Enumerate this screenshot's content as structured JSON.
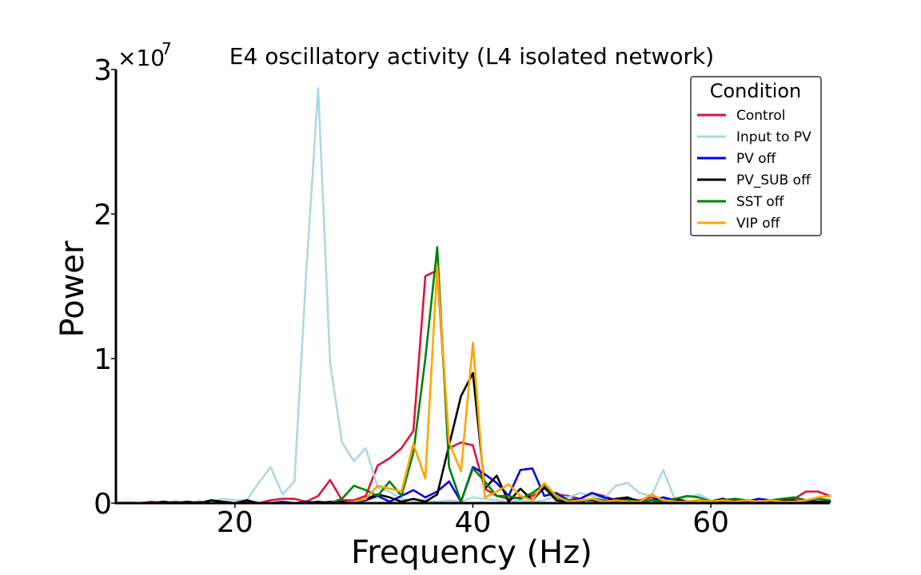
{
  "chart_data": {
    "type": "line",
    "title": "E4 oscillatory activity (L4 isolated network)",
    "xlabel": "Frequency (Hz)",
    "ylabel": "Power",
    "y_multiplier": "×10",
    "y_exponent": "7",
    "xlim": [
      10,
      70
    ],
    "ylim": [
      0,
      3
    ],
    "x_ticks": [
      20,
      40,
      60
    ],
    "y_ticks": [
      0,
      1,
      2,
      3
    ],
    "grid": false,
    "legend": {
      "title": "Condition",
      "position": "top-right"
    },
    "x": [
      10,
      11,
      12,
      13,
      14,
      15,
      16,
      17,
      18,
      19,
      20,
      21,
      22,
      23,
      24,
      25,
      26,
      27,
      28,
      29,
      30,
      31,
      32,
      33,
      34,
      35,
      36,
      37,
      38,
      39,
      40,
      41,
      42,
      43,
      44,
      45,
      46,
      47,
      48,
      49,
      50,
      51,
      52,
      53,
      54,
      55,
      56,
      57,
      58,
      59,
      60,
      61,
      62,
      63,
      64,
      65,
      66,
      67,
      68,
      69,
      70
    ],
    "series": [
      {
        "name": "Control",
        "color": "#dc143c",
        "values": [
          0,
          0,
          0,
          0.01,
          0,
          0.01,
          0,
          0.01,
          0,
          0.01,
          0,
          0.01,
          0,
          0.02,
          0.03,
          0.03,
          0.01,
          0.05,
          0.16,
          0.02,
          0.02,
          0.05,
          0.26,
          0.31,
          0.38,
          0.5,
          1.57,
          1.61,
          0.38,
          0.42,
          0.4,
          0.1,
          0.05,
          0.03,
          0.04,
          0.05,
          0.1,
          0.06,
          0.05,
          0.03,
          0.07,
          0.05,
          0.02,
          0.03,
          0.02,
          0.04,
          0.02,
          0.03,
          0.01,
          0.02,
          0.01,
          0.03,
          0.01,
          0.02,
          0.01,
          0.02,
          0.02,
          0.03,
          0.08,
          0.08,
          0.05
        ]
      },
      {
        "name": "Input to PV",
        "color": "#add8e6",
        "values": [
          0,
          0.01,
          0,
          0,
          0.01,
          0,
          0.01,
          0,
          0.01,
          0.03,
          0.02,
          0.02,
          0.14,
          0.25,
          0.06,
          0.15,
          1.6,
          2.87,
          0.97,
          0.42,
          0.29,
          0.38,
          0.11,
          0.08,
          0.03,
          0.02,
          0.02,
          0.01,
          0.02,
          0.01,
          0.04,
          0.03,
          0.02,
          0.01,
          0.02,
          0.01,
          0.02,
          0.05,
          0.04,
          0.07,
          0.05,
          0.03,
          0.12,
          0.14,
          0.07,
          0.05,
          0.23,
          0.02,
          0.04,
          0.06,
          0.02,
          0.01,
          0.02,
          0.01,
          0.01,
          0.02,
          0.01,
          0.01,
          0.02,
          0.01,
          0.01
        ]
      },
      {
        "name": "PV off",
        "color": "#0000e0",
        "values": [
          0,
          0,
          0,
          0,
          0,
          0,
          0,
          0,
          0,
          0,
          0,
          0,
          0,
          0,
          0.01,
          0,
          0.01,
          0,
          0.01,
          0,
          0.01,
          0.02,
          0.05,
          0.01,
          0.05,
          0.09,
          0.04,
          0.08,
          0.15,
          0.01,
          0.25,
          0.2,
          0.14,
          0.05,
          0.23,
          0.24,
          0.05,
          0.07,
          0.02,
          0.03,
          0.07,
          0.04,
          0.02,
          0.03,
          0.01,
          0.02,
          0.04,
          0.02,
          0.01,
          0.02,
          0.01,
          0.01,
          0.02,
          0.01,
          0.03,
          0.02,
          0.01,
          0.02,
          0.01,
          0.01,
          0.01
        ]
      },
      {
        "name": "PV_SUB off",
        "color": "#000000",
        "values": [
          0,
          0,
          0,
          0,
          0.01,
          0,
          0.01,
          0,
          0.02,
          0.01,
          0,
          0.02,
          0,
          0,
          0,
          0,
          0,
          0.01,
          0,
          0.01,
          0,
          0.03,
          0.06,
          0.04,
          0.01,
          0.03,
          0.01,
          0.06,
          0.4,
          0.74,
          0.9,
          0.1,
          0.19,
          0.01,
          0.1,
          0.02,
          0.11,
          0.02,
          0.01,
          0.02,
          0.02,
          0.01,
          0.03,
          0.04,
          0.01,
          0.02,
          0.01,
          0.03,
          0.01,
          0.02,
          0.01,
          0.03,
          0.01,
          0.02,
          0.01,
          0.01,
          0.02,
          0.01,
          0.02,
          0.01,
          0.01
        ]
      },
      {
        "name": "SST off",
        "color": "#008000",
        "values": [
          0,
          0,
          0,
          0,
          0,
          0,
          0,
          0,
          0,
          0,
          0,
          0,
          0,
          0,
          0,
          0,
          0,
          0,
          0,
          0.03,
          0.12,
          0.09,
          0.05,
          0.15,
          0.05,
          0.35,
          1.0,
          1.77,
          0.25,
          0.01,
          0.24,
          0.15,
          0.05,
          0.05,
          0.03,
          0.07,
          0.13,
          0.04,
          0.02,
          0.01,
          0.03,
          0.02,
          0.01,
          0.02,
          0.01,
          0.02,
          0.01,
          0.03,
          0.05,
          0.04,
          0.01,
          0.02,
          0.03,
          0.02,
          0.01,
          0.02,
          0.03,
          0.04,
          0.02,
          0.03,
          0.02
        ]
      },
      {
        "name": "VIP off",
        "color": "#ffa500",
        "values": [
          0,
          0,
          0,
          0,
          0,
          0,
          0,
          0,
          0,
          0,
          0,
          0,
          0,
          0,
          0,
          0,
          0,
          0,
          0,
          0,
          0.01,
          0.03,
          0.12,
          0.1,
          0.08,
          0.41,
          0.17,
          1.64,
          0.42,
          0.22,
          1.11,
          0.04,
          0.08,
          0.13,
          0.05,
          0.02,
          0.14,
          0.05,
          0.01,
          0.02,
          0.03,
          0.01,
          0.02,
          0.01,
          0.01,
          0.06,
          0.02,
          0.01,
          0.01,
          0.02,
          0.01,
          0.02,
          0.01,
          0.02,
          0.01,
          0.02,
          0.01,
          0.01,
          0.02,
          0.04,
          0.05
        ]
      }
    ]
  }
}
